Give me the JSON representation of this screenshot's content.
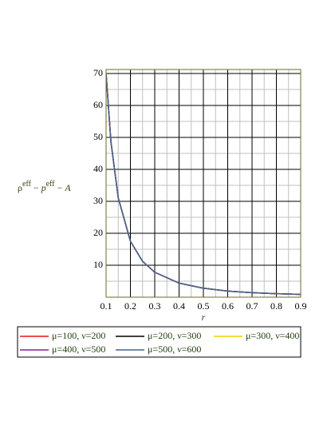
{
  "chart_data": {
    "type": "line",
    "x_label": "r",
    "y_label_parts": [
      {
        "text": "ρ"
      },
      {
        "text": "eff",
        "sup": true
      },
      {
        "text": " − "
      },
      {
        "text": "p",
        "italic": true
      },
      {
        "text": "eff",
        "sup": true
      },
      {
        "text": " − "
      },
      {
        "text": "A",
        "italic": true
      }
    ],
    "x": [
      0.1,
      0.12,
      0.15,
      0.2,
      0.25,
      0.3,
      0.4,
      0.5,
      0.6,
      0.7,
      0.8,
      0.9
    ],
    "series": [
      {
        "name": "μ=100, ν=200",
        "color": "#e8141e",
        "values": [
          70,
          48.6,
          31.1,
          17.5,
          11.2,
          7.8,
          4.4,
          2.8,
          1.9,
          1.4,
          1.1,
          0.86
        ]
      },
      {
        "name": "μ=200, ν=300",
        "color": "#000000",
        "values": [
          70,
          48.6,
          31.1,
          17.5,
          11.2,
          7.8,
          4.4,
          2.8,
          1.9,
          1.4,
          1.1,
          0.86
        ]
      },
      {
        "name": "μ=300, ν=400",
        "color": "#f0d000",
        "values": [
          70,
          48.6,
          31.1,
          17.5,
          11.2,
          7.8,
          4.4,
          2.8,
          1.9,
          1.4,
          1.1,
          0.86
        ]
      },
      {
        "name": "μ=400, ν=500",
        "color": "#8e1e8e",
        "values": [
          70,
          48.6,
          31.1,
          17.5,
          11.2,
          7.8,
          4.4,
          2.8,
          1.9,
          1.4,
          1.1,
          0.86
        ]
      },
      {
        "name": "μ=500, ν=600",
        "color": "#44668e",
        "values": [
          70,
          48.6,
          31.1,
          17.5,
          11.2,
          7.8,
          4.4,
          2.8,
          1.9,
          1.4,
          1.1,
          0.86
        ]
      }
    ],
    "xlim": [
      0.1,
      0.9
    ],
    "ylim": [
      0,
      71.25
    ],
    "xticks": [
      0.1,
      0.2,
      0.3,
      0.4,
      0.5,
      0.6,
      0.7,
      0.8,
      0.9
    ],
    "yticks": [
      10,
      20,
      30,
      40,
      50,
      60,
      70
    ],
    "minor_xticks": [
      0.15,
      0.25,
      0.35,
      0.45,
      0.55,
      0.65,
      0.75,
      0.85
    ],
    "minor_yticks": [
      5,
      15,
      25,
      35,
      45,
      55,
      65
    ],
    "grid": true
  }
}
